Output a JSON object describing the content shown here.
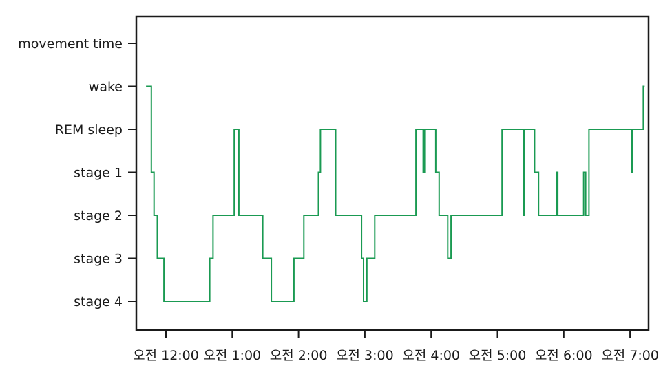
{
  "chart_data": {
    "type": "line",
    "title": "",
    "xlabel": "",
    "ylabel": "",
    "y_categories": [
      "stage 4",
      "stage 3",
      "stage 2",
      "stage 1",
      "REM sleep",
      "wake",
      "movement time"
    ],
    "x_ticks": [
      {
        "hour": 0,
        "label": "오전 12:00"
      },
      {
        "hour": 1,
        "label": "오전 1:00"
      },
      {
        "hour": 2,
        "label": "오전 2:00"
      },
      {
        "hour": 3,
        "label": "오전 3:00"
      },
      {
        "hour": 4,
        "label": "오전 4:00"
      },
      {
        "hour": 5,
        "label": "오전 5:00"
      },
      {
        "hour": 6,
        "label": "오전 6:00"
      },
      {
        "hour": 7,
        "label": "오전 7:00"
      }
    ],
    "xlim": [
      -0.43,
      7.22
    ],
    "grid": false,
    "line_color": "#1a9a52",
    "series": [
      {
        "name": "",
        "stage_scale": "0 = stage 4, 1 = stage 3, 2 = stage 2, 3 = stage 1, 4 = REM sleep, 5 = wake, 6 = movement time",
        "steps": [
          [
            -0.3,
            5
          ],
          [
            -0.22,
            3
          ],
          [
            -0.18,
            2
          ],
          [
            -0.13,
            1
          ],
          [
            -0.03,
            0
          ],
          [
            0.66,
            1
          ],
          [
            0.71,
            2
          ],
          [
            1.03,
            4
          ],
          [
            1.1,
            2
          ],
          [
            1.46,
            1
          ],
          [
            1.59,
            0
          ],
          [
            1.93,
            1
          ],
          [
            2.08,
            2
          ],
          [
            2.3,
            3
          ],
          [
            2.33,
            4
          ],
          [
            2.35,
            4
          ],
          [
            2.56,
            2
          ],
          [
            2.95,
            1
          ],
          [
            2.98,
            0
          ],
          [
            3.03,
            1
          ],
          [
            3.15,
            2
          ],
          [
            3.77,
            4
          ],
          [
            3.88,
            3
          ],
          [
            3.9,
            4
          ],
          [
            4.07,
            3
          ],
          [
            4.12,
            2
          ],
          [
            4.25,
            1
          ],
          [
            4.3,
            2
          ],
          [
            5.07,
            4
          ],
          [
            5.4,
            2
          ],
          [
            5.41,
            4
          ],
          [
            5.56,
            3
          ],
          [
            5.62,
            2
          ],
          [
            5.89,
            3
          ],
          [
            5.91,
            2
          ],
          [
            6.3,
            3
          ],
          [
            6.33,
            2
          ],
          [
            6.38,
            4
          ],
          [
            7.03,
            3
          ],
          [
            7.04,
            4
          ],
          [
            7.2,
            5
          ],
          [
            7.22,
            5
          ]
        ]
      }
    ]
  }
}
